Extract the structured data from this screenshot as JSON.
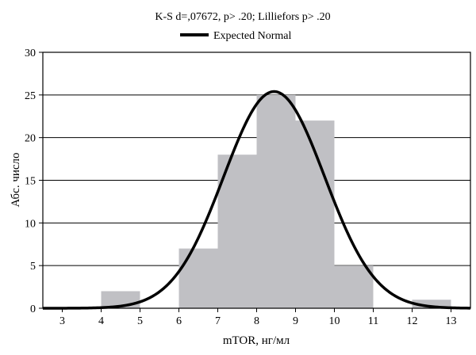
{
  "chart_data": {
    "type": "bar",
    "title": "K-S d=,07672, p> .20; Lilliefors p> .20",
    "xlabel": "mTOR, нг/мл",
    "ylabel": "Абс. число",
    "xlim": [
      2.5,
      13.5
    ],
    "ylim": [
      0,
      30
    ],
    "x_ticks": [
      3,
      4,
      5,
      6,
      7,
      8,
      9,
      10,
      11,
      12,
      13
    ],
    "y_ticks": [
      0,
      5,
      10,
      15,
      20,
      25,
      30
    ],
    "grid": true,
    "legend_position": "top-center",
    "bin_width": 1,
    "bins": [
      {
        "from": 4,
        "to": 5,
        "count": 2
      },
      {
        "from": 6,
        "to": 7,
        "count": 7
      },
      {
        "from": 7,
        "to": 8,
        "count": 18
      },
      {
        "from": 8,
        "to": 9,
        "count": 25
      },
      {
        "from": 9,
        "to": 10,
        "count": 22
      },
      {
        "from": 10,
        "to": 11,
        "count": 5
      },
      {
        "from": 12,
        "to": 13,
        "count": 1
      }
    ],
    "curve": {
      "name": "Expected Normal",
      "mean": 8.45,
      "sd": 1.3,
      "peak": 25.4
    },
    "colors": {
      "bar": "#c0c0c4",
      "curve": "#000000",
      "grid": "#000000"
    }
  }
}
